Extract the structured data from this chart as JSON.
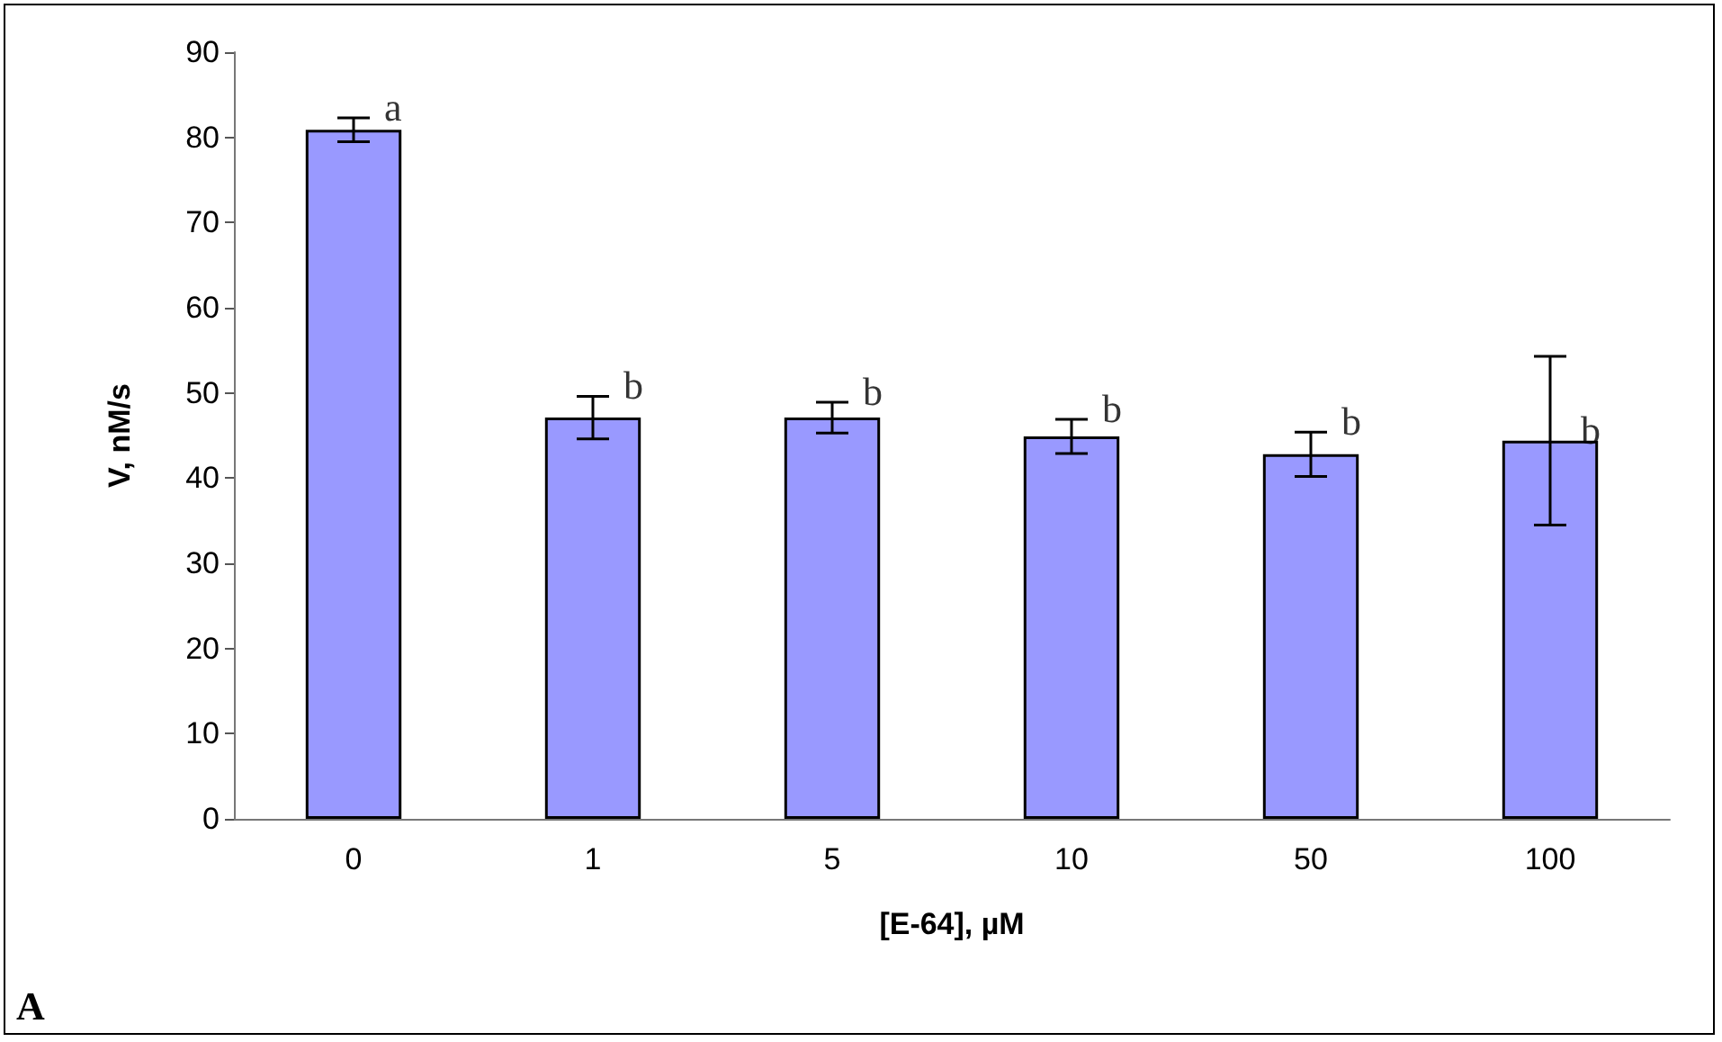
{
  "chart_data": {
    "type": "bar",
    "xlabel": "[E-64], µM",
    "ylabel": "V, nM/s",
    "categories": [
      "0",
      "1",
      "5",
      "10",
      "50",
      "100"
    ],
    "values": [
      80.9,
      47.1,
      47.1,
      44.9,
      42.8,
      44.4
    ],
    "errors": [
      1.4,
      2.5,
      1.8,
      2,
      2.6,
      9.9
    ],
    "color": "#9999ff",
    "ylim": [
      0,
      90
    ],
    "yticks": [
      0,
      10,
      20,
      30,
      40,
      50,
      60,
      70,
      80,
      90
    ],
    "grid": false,
    "annotations": [
      {
        "text": "a",
        "x": "0",
        "y": 82.3
      },
      {
        "text": "b",
        "x": "1",
        "y": 49.6
      },
      {
        "text": "b",
        "x": "5",
        "y": 48.9
      },
      {
        "text": "b",
        "x": "10",
        "y": 46.9
      },
      {
        "text": "b",
        "x": "50",
        "y": 45.4
      },
      {
        "text": "b",
        "x": "100",
        "y": 44.4
      },
      "A"
    ]
  }
}
